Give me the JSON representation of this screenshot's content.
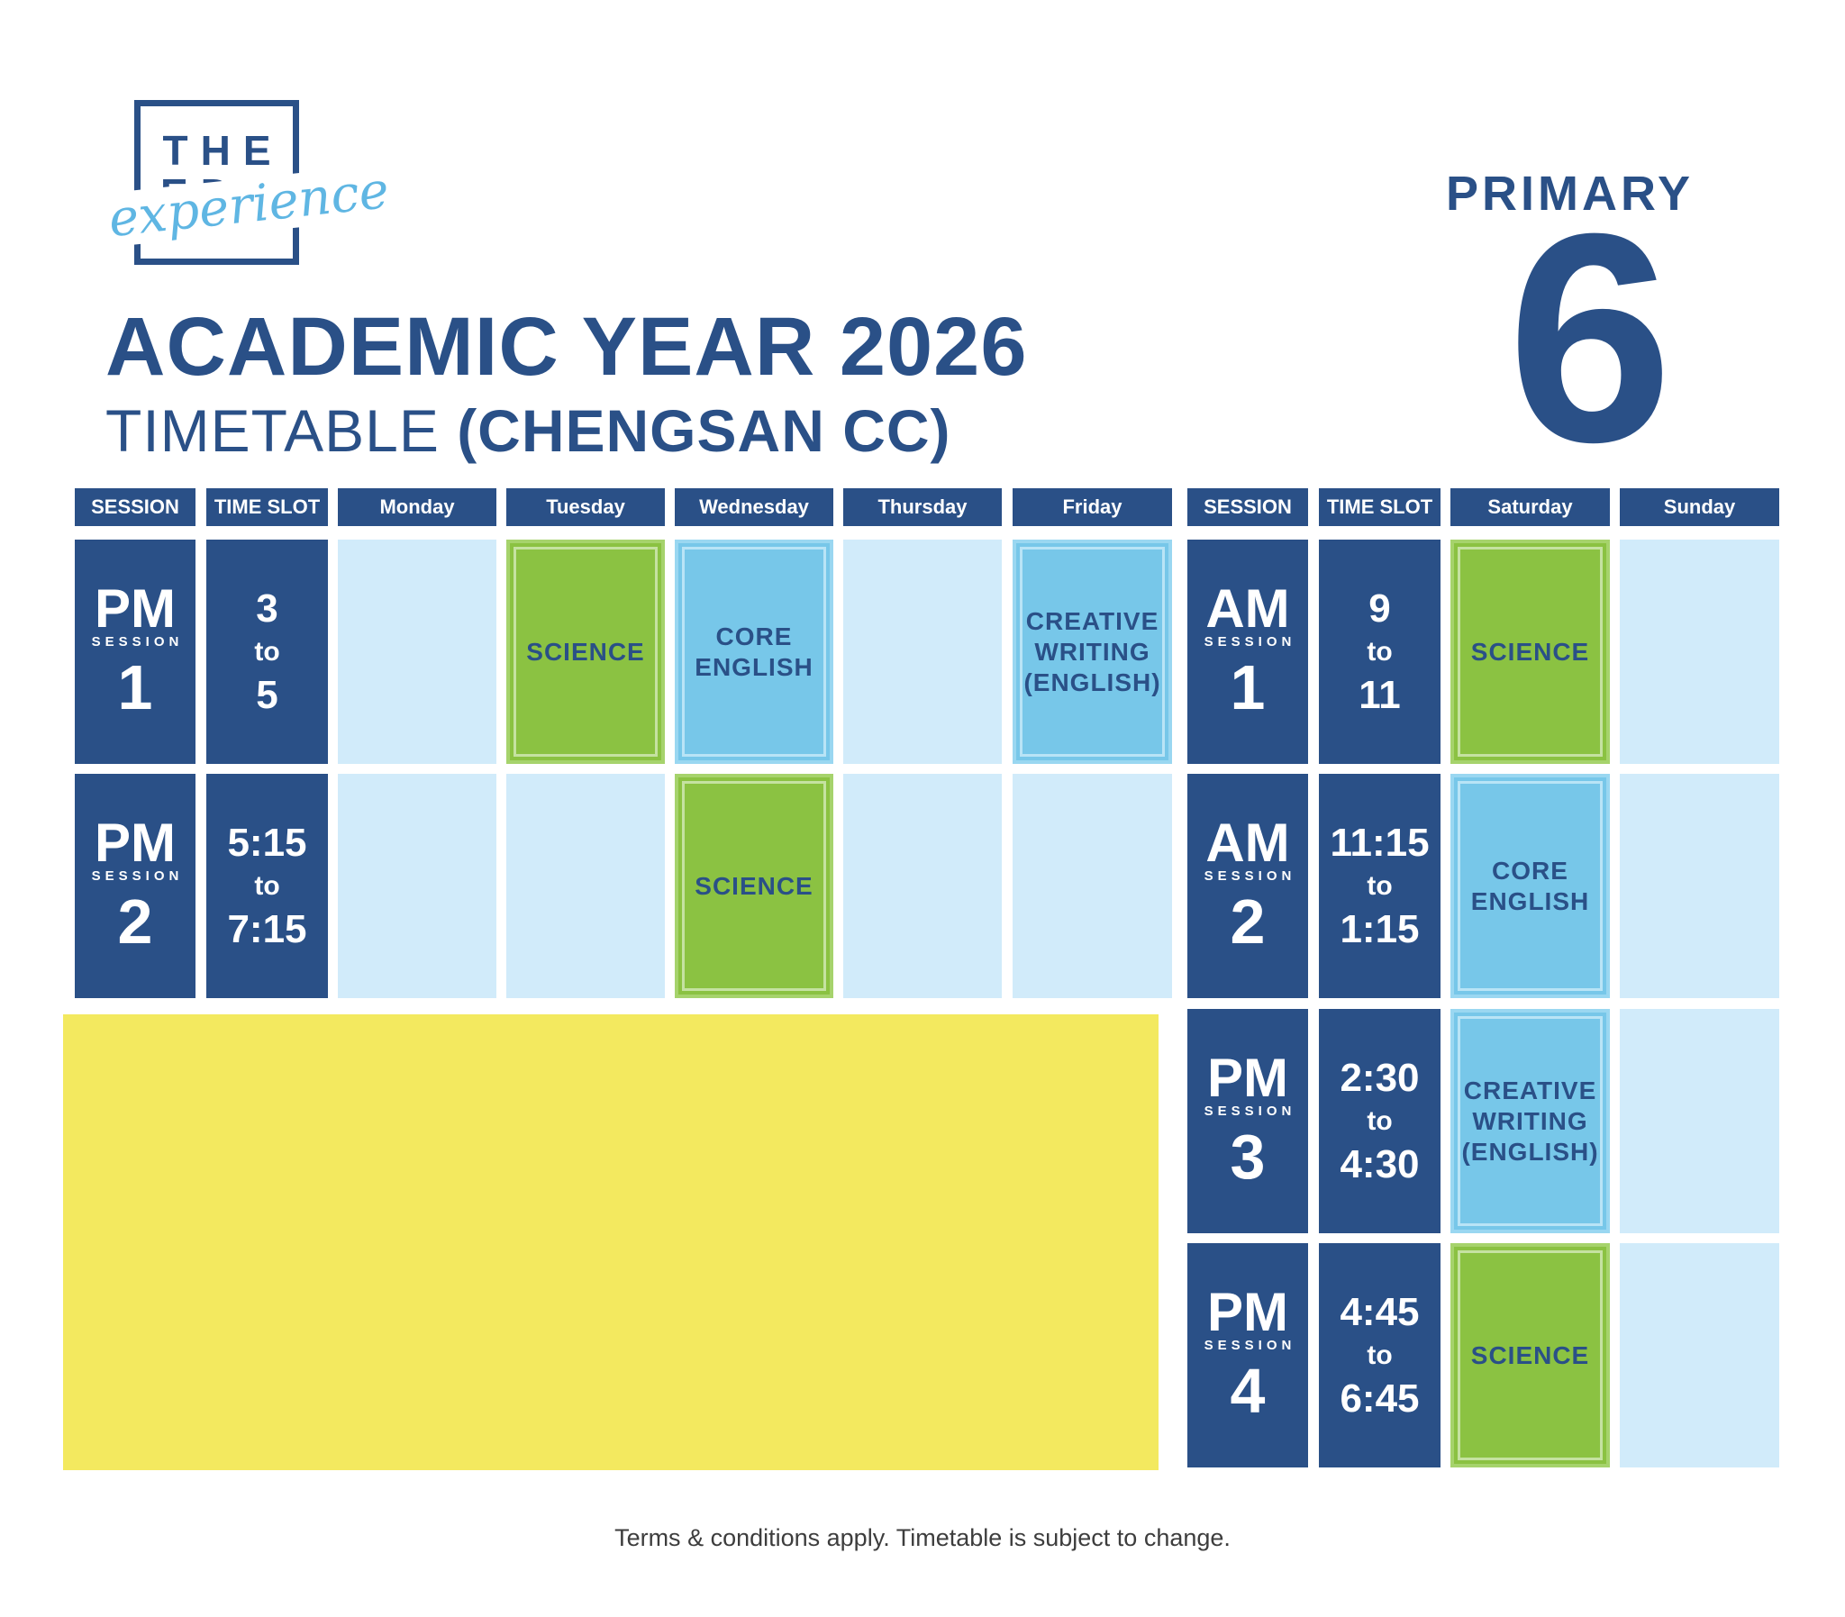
{
  "logo": {
    "line1": "THE",
    "line2": "EDU",
    "script": "experience"
  },
  "title": {
    "main": "ACADEMIC YEAR 2026",
    "sub_plain": "TIMETABLE",
    "sub_bold": "(CHENGSAN CC)"
  },
  "level": {
    "label": "PRIMARY",
    "number": "6"
  },
  "headers": {
    "session": "SESSION",
    "time_slot": "TIME SLOT",
    "monday": "Monday",
    "tuesday": "Tuesday",
    "wednesday": "Wednesday",
    "thursday": "Thursday",
    "friday": "Friday",
    "saturday": "Saturday",
    "sunday": "Sunday"
  },
  "weekday": {
    "row1": {
      "period": "PM",
      "session_word": "SESSION",
      "number": "1",
      "time_from": "3",
      "time_to_word": "to",
      "time_to": "5",
      "tuesday": "SCIENCE",
      "wednesday_l1": "CORE",
      "wednesday_l2": "ENGLISH",
      "friday_l1": "CREATIVE",
      "friday_l2": "WRITING",
      "friday_l3": "(ENGLISH)"
    },
    "row2": {
      "period": "PM",
      "session_word": "SESSION",
      "number": "2",
      "time_from": "5:15",
      "time_to_word": "to",
      "time_to": "7:15",
      "wednesday": "SCIENCE"
    }
  },
  "weekend": {
    "row1": {
      "period": "AM",
      "session_word": "SESSION",
      "number": "1",
      "time_from": "9",
      "time_to_word": "to",
      "time_to": "11",
      "saturday": "SCIENCE"
    },
    "row2": {
      "period": "AM",
      "session_word": "SESSION",
      "number": "2",
      "time_from": "11:15",
      "time_to_word": "to",
      "time_to": "1:15",
      "saturday_l1": "CORE",
      "saturday_l2": "ENGLISH"
    },
    "row3": {
      "period": "PM",
      "session_word": "SESSION",
      "number": "3",
      "time_from": "2:30",
      "time_to_word": "to",
      "time_to": "4:30",
      "saturday_l1": "CREATIVE",
      "saturday_l2": "WRITING",
      "saturday_l3": "(ENGLISH)"
    },
    "row4": {
      "period": "PM",
      "session_word": "SESSION",
      "number": "4",
      "time_from": "4:45",
      "time_to_word": "to",
      "time_to": "6:45",
      "saturday": "SCIENCE"
    }
  },
  "colors": {
    "navy": "#2a5087",
    "light_blue": "#d1ebfa",
    "green": "#8bc242",
    "sky_blue": "#77c7e9",
    "yellow": "#f3e95f"
  },
  "footer": "Terms & conditions apply. Timetable is subject to change."
}
